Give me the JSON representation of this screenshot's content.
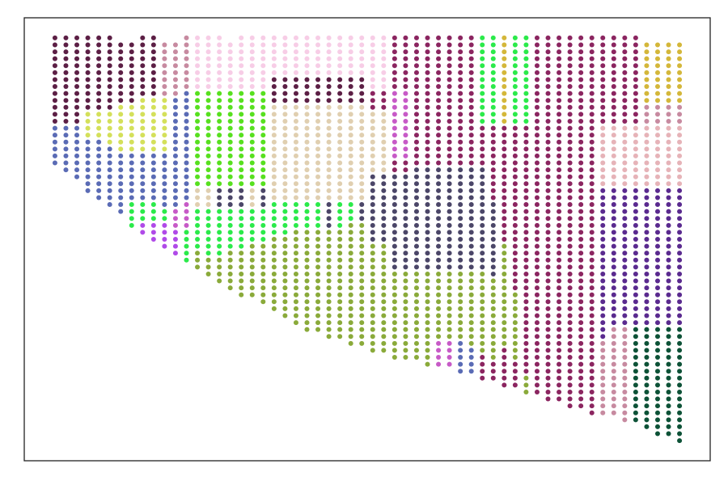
{
  "chart_data": {
    "type": "scatter",
    "xlim": [
      -2.8,
      59.8
    ],
    "ylim": [
      60.9,
      -2.9
    ],
    "palette": [
      "#5c1f45",
      "#5a6bb5",
      "#57e01f",
      "#e0cfb0",
      "#8aaa3a",
      "#4b4668",
      "#8b2560",
      "#5a2a8f",
      "#e6b3b8",
      "#0d5237",
      "#f7cde6",
      "#2bea4a",
      "#d4e05a",
      "#d4b73a",
      "#c75ac7",
      "#c78aa0",
      "#b04ae8"
    ],
    "columns": [
      [
        [
          0,
          13,
          0
        ],
        [
          13,
          6,
          1
        ]
      ],
      [
        [
          0,
          13,
          0
        ],
        [
          13,
          7,
          1
        ]
      ],
      [
        [
          0,
          13,
          0
        ],
        [
          13,
          8,
          1
        ]
      ],
      [
        [
          0,
          11,
          0
        ],
        [
          11,
          4,
          12
        ],
        [
          15,
          8,
          1
        ]
      ],
      [
        [
          0,
          11,
          0
        ],
        [
          11,
          4,
          12
        ],
        [
          15,
          9,
          1
        ]
      ],
      [
        [
          0,
          11,
          0
        ],
        [
          11,
          5,
          12
        ],
        [
          16,
          9,
          1
        ]
      ],
      [
        [
          1,
          9,
          0
        ],
        [
          10,
          7,
          12
        ],
        [
          17,
          9,
          1
        ]
      ],
      [
        [
          1,
          9,
          0
        ],
        [
          10,
          7,
          12
        ],
        [
          17,
          7,
          1
        ],
        [
          24,
          4,
          11
        ]
      ],
      [
        [
          0,
          9,
          0
        ],
        [
          9,
          8,
          12
        ],
        [
          17,
          7,
          1
        ],
        [
          24,
          3,
          11
        ],
        [
          27,
          2,
          16
        ]
      ],
      [
        [
          0,
          9,
          0
        ],
        [
          9,
          8,
          12
        ],
        [
          17,
          7,
          1
        ],
        [
          24,
          3,
          11
        ],
        [
          27,
          3,
          16
        ]
      ],
      [
        [
          1,
          8,
          15
        ],
        [
          9,
          8,
          12
        ],
        [
          17,
          8,
          1
        ],
        [
          25,
          2,
          11
        ],
        [
          27,
          4,
          16
        ]
      ],
      [
        [
          1,
          8,
          15
        ],
        [
          9,
          16,
          1
        ],
        [
          25,
          3,
          14
        ],
        [
          28,
          4,
          16
        ]
      ],
      [
        [
          0,
          8,
          15
        ],
        [
          8,
          16,
          1
        ],
        [
          24,
          4,
          14
        ],
        [
          28,
          5,
          11
        ]
      ],
      [
        [
          0,
          8,
          10
        ],
        [
          8,
          14,
          2
        ],
        [
          22,
          3,
          3
        ],
        [
          25,
          6,
          11
        ],
        [
          31,
          3,
          4
        ]
      ],
      [
        [
          0,
          8,
          10
        ],
        [
          8,
          14,
          2
        ],
        [
          22,
          3,
          3
        ],
        [
          25,
          7,
          11
        ],
        [
          32,
          3,
          4
        ]
      ],
      [
        [
          0,
          8,
          10
        ],
        [
          8,
          14,
          2
        ],
        [
          22,
          3,
          5
        ],
        [
          25,
          7,
          11
        ],
        [
          32,
          4,
          4
        ]
      ],
      [
        [
          1,
          7,
          10
        ],
        [
          8,
          14,
          2
        ],
        [
          22,
          3,
          5
        ],
        [
          25,
          6,
          11
        ],
        [
          31,
          6,
          4
        ]
      ],
      [
        [
          0,
          8,
          10
        ],
        [
          8,
          14,
          2
        ],
        [
          22,
          3,
          5
        ],
        [
          25,
          6,
          11
        ],
        [
          31,
          7,
          4
        ]
      ],
      [
        [
          0,
          8,
          10
        ],
        [
          8,
          14,
          2
        ],
        [
          22,
          3,
          3
        ],
        [
          25,
          5,
          11
        ],
        [
          30,
          8,
          4
        ]
      ],
      [
        [
          0,
          8,
          10
        ],
        [
          8,
          14,
          2
        ],
        [
          22,
          3,
          5
        ],
        [
          25,
          5,
          11
        ],
        [
          30,
          9,
          4
        ]
      ],
      [
        [
          0,
          6,
          10
        ],
        [
          6,
          4,
          0
        ],
        [
          10,
          14,
          3
        ],
        [
          24,
          5,
          11
        ],
        [
          29,
          11,
          4
        ]
      ],
      [
        [
          0,
          6,
          10
        ],
        [
          6,
          4,
          0
        ],
        [
          10,
          14,
          3
        ],
        [
          24,
          5,
          11
        ],
        [
          29,
          12,
          4
        ]
      ],
      [
        [
          0,
          6,
          10
        ],
        [
          6,
          4,
          0
        ],
        [
          10,
          14,
          3
        ],
        [
          24,
          4,
          11
        ],
        [
          28,
          14,
          4
        ]
      ],
      [
        [
          0,
          6,
          10
        ],
        [
          6,
          4,
          0
        ],
        [
          10,
          14,
          3
        ],
        [
          24,
          4,
          11
        ],
        [
          28,
          15,
          4
        ]
      ],
      [
        [
          0,
          6,
          10
        ],
        [
          6,
          4,
          0
        ],
        [
          10,
          14,
          3
        ],
        [
          24,
          4,
          11
        ],
        [
          28,
          15,
          4
        ]
      ],
      [
        [
          0,
          6,
          10
        ],
        [
          6,
          4,
          0
        ],
        [
          10,
          14,
          3
        ],
        [
          24,
          4,
          5
        ],
        [
          28,
          16,
          4
        ]
      ],
      [
        [
          0,
          6,
          10
        ],
        [
          6,
          4,
          0
        ],
        [
          10,
          14,
          3
        ],
        [
          24,
          4,
          11
        ],
        [
          28,
          16,
          4
        ]
      ],
      [
        [
          0,
          6,
          10
        ],
        [
          6,
          4,
          0
        ],
        [
          10,
          14,
          3
        ],
        [
          24,
          3,
          11
        ],
        [
          27,
          18,
          4
        ]
      ],
      [
        [
          0,
          6,
          10
        ],
        [
          6,
          4,
          0
        ],
        [
          10,
          14,
          3
        ],
        [
          24,
          3,
          5
        ],
        [
          27,
          18,
          4
        ]
      ],
      [
        [
          0,
          8,
          10
        ],
        [
          8,
          3,
          6
        ],
        [
          11,
          9,
          3
        ],
        [
          20,
          10,
          5
        ],
        [
          30,
          16,
          4
        ]
      ],
      [
        [
          0,
          8,
          10
        ],
        [
          8,
          3,
          6
        ],
        [
          11,
          9,
          3
        ],
        [
          20,
          10,
          5
        ],
        [
          30,
          16,
          4
        ]
      ],
      [
        [
          0,
          8,
          6
        ],
        [
          8,
          10,
          14
        ],
        [
          18,
          2,
          6
        ],
        [
          20,
          14,
          5
        ],
        [
          34,
          13,
          4
        ]
      ],
      [
        [
          0,
          8,
          6
        ],
        [
          8,
          10,
          14
        ],
        [
          18,
          2,
          6
        ],
        [
          20,
          14,
          5
        ],
        [
          34,
          13,
          4
        ]
      ],
      [
        [
          0,
          19,
          6
        ],
        [
          19,
          15,
          5
        ],
        [
          34,
          13,
          4
        ]
      ],
      [
        [
          0,
          19,
          6
        ],
        [
          19,
          15,
          5
        ],
        [
          34,
          14,
          4
        ]
      ],
      [
        [
          0,
          19,
          6
        ],
        [
          19,
          15,
          5
        ],
        [
          34,
          10,
          4
        ],
        [
          44,
          4,
          14
        ]
      ],
      [
        [
          0,
          19,
          6
        ],
        [
          19,
          15,
          5
        ],
        [
          34,
          10,
          4
        ],
        [
          44,
          4,
          14
        ]
      ],
      [
        [
          0,
          19,
          6
        ],
        [
          19,
          15,
          5
        ],
        [
          34,
          10,
          4
        ],
        [
          44,
          5,
          1
        ]
      ],
      [
        [
          0,
          19,
          6
        ],
        [
          19,
          15,
          5
        ],
        [
          34,
          11,
          4
        ],
        [
          45,
          4,
          1
        ]
      ],
      [
        [
          0,
          13,
          11
        ],
        [
          13,
          6,
          6
        ],
        [
          19,
          15,
          5
        ],
        [
          34,
          12,
          4
        ],
        [
          46,
          4,
          6
        ]
      ],
      [
        [
          0,
          13,
          11
        ],
        [
          13,
          11,
          6
        ],
        [
          24,
          11,
          5
        ],
        [
          35,
          12,
          4
        ],
        [
          47,
          3,
          6
        ]
      ],
      [
        [
          0,
          13,
          13
        ],
        [
          13,
          17,
          6
        ],
        [
          30,
          15,
          4
        ],
        [
          45,
          6,
          6
        ]
      ],
      [
        [
          0,
          13,
          11
        ],
        [
          13,
          24,
          6
        ],
        [
          37,
          10,
          4
        ],
        [
          47,
          4,
          6
        ]
      ],
      [
        [
          0,
          13,
          11
        ],
        [
          13,
          36,
          6
        ],
        [
          49,
          3,
          4
        ]
      ],
      [
        [
          0,
          52,
          6
        ]
      ],
      [
        [
          0,
          53,
          6
        ]
      ],
      [
        [
          0,
          53,
          6
        ]
      ],
      [
        [
          0,
          54,
          6
        ]
      ],
      [
        [
          0,
          54,
          6
        ]
      ],
      [
        [
          0,
          55,
          6
        ]
      ],
      [
        [
          0,
          13,
          6
        ],
        [
          13,
          9,
          8
        ],
        [
          22,
          22,
          7
        ],
        [
          44,
          11,
          15
        ]
      ],
      [
        [
          0,
          13,
          6
        ],
        [
          13,
          9,
          8
        ],
        [
          22,
          20,
          7
        ],
        [
          42,
          13,
          15
        ]
      ],
      [
        [
          0,
          13,
          6
        ],
        [
          13,
          9,
          8
        ],
        [
          22,
          20,
          7
        ],
        [
          42,
          14,
          15
        ]
      ],
      [
        [
          0,
          13,
          6
        ],
        [
          13,
          9,
          8
        ],
        [
          22,
          20,
          7
        ],
        [
          42,
          14,
          9
        ]
      ],
      [
        [
          1,
          9,
          13
        ],
        [
          10,
          3,
          15
        ],
        [
          13,
          9,
          8
        ],
        [
          22,
          20,
          7
        ],
        [
          42,
          15,
          9
        ]
      ],
      [
        [
          1,
          9,
          13
        ],
        [
          10,
          3,
          15
        ],
        [
          13,
          9,
          8
        ],
        [
          22,
          20,
          7
        ],
        [
          42,
          16,
          9
        ]
      ],
      [
        [
          1,
          9,
          13
        ],
        [
          10,
          3,
          15
        ],
        [
          13,
          9,
          8
        ],
        [
          22,
          20,
          7
        ],
        [
          42,
          16,
          9
        ]
      ],
      [
        [
          1,
          9,
          13
        ],
        [
          10,
          3,
          15
        ],
        [
          13,
          9,
          8
        ],
        [
          22,
          20,
          7
        ],
        [
          42,
          17,
          9
        ]
      ]
    ]
  }
}
